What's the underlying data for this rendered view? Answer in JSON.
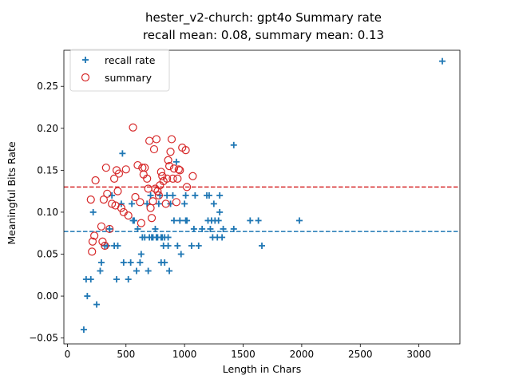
{
  "chart_data": {
    "type": "scatter",
    "title_line1": "hester_v2-church: gpt4o Summary rate",
    "title_line2": "recall mean: 0.08, summary mean: 0.13",
    "xlabel": "Length in Chars",
    "ylabel": "Meaningful Bits Rate",
    "xlim": [
      -30,
      3350
    ],
    "ylim": [
      -0.057,
      0.293
    ],
    "xticks": [
      0,
      500,
      1000,
      1500,
      2000,
      2500,
      3000
    ],
    "yticks": [
      -0.05,
      0.0,
      0.05,
      0.1,
      0.15,
      0.2,
      0.25
    ],
    "ytick_labels": [
      "−0.05",
      "0.00",
      "0.05",
      "0.10",
      "0.15",
      "0.20",
      "0.25"
    ],
    "grid": false,
    "legend_position": "top-left",
    "series": [
      {
        "name": "recall rate",
        "marker": "plus",
        "color": "#1f77b4",
        "mean": 0.077,
        "points": [
          [
            140,
            -0.04
          ],
          [
            170,
            0.0
          ],
          [
            200,
            0.02
          ],
          [
            160,
            0.02
          ],
          [
            250,
            -0.01
          ],
          [
            280,
            0.03
          ],
          [
            290,
            0.04
          ],
          [
            220,
            0.1
          ],
          [
            320,
            0.06
          ],
          [
            340,
            0.06
          ],
          [
            360,
            0.08
          ],
          [
            380,
            0.12
          ],
          [
            400,
            0.06
          ],
          [
            420,
            0.02
          ],
          [
            430,
            0.06
          ],
          [
            460,
            0.11
          ],
          [
            470,
            0.17
          ],
          [
            480,
            0.04
          ],
          [
            520,
            0.02
          ],
          [
            540,
            0.04
          ],
          [
            550,
            0.11
          ],
          [
            560,
            0.09
          ],
          [
            570,
            0.09
          ],
          [
            590,
            0.03
          ],
          [
            600,
            0.08
          ],
          [
            620,
            0.04
          ],
          [
            630,
            0.05
          ],
          [
            640,
            0.07
          ],
          [
            660,
            0.07
          ],
          [
            680,
            0.11
          ],
          [
            690,
            0.03
          ],
          [
            700,
            0.07
          ],
          [
            710,
            0.12
          ],
          [
            720,
            0.07
          ],
          [
            730,
            0.07
          ],
          [
            750,
            0.08
          ],
          [
            760,
            0.07
          ],
          [
            770,
            0.07
          ],
          [
            780,
            0.11
          ],
          [
            790,
            0.12
          ],
          [
            800,
            0.04
          ],
          [
            800,
            0.07
          ],
          [
            810,
            0.07
          ],
          [
            820,
            0.06
          ],
          [
            830,
            0.07
          ],
          [
            830,
            0.04
          ],
          [
            850,
            0.12
          ],
          [
            860,
            0.06
          ],
          [
            870,
            0.03
          ],
          [
            880,
            0.11
          ],
          [
            900,
            0.12
          ],
          [
            910,
            0.09
          ],
          [
            930,
            0.16
          ],
          [
            940,
            0.06
          ],
          [
            960,
            0.09
          ],
          [
            970,
            0.05
          ],
          [
            1000,
            0.11
          ],
          [
            1010,
            0.12
          ],
          [
            1020,
            0.09
          ],
          [
            1060,
            0.06
          ],
          [
            1080,
            0.08
          ],
          [
            1090,
            0.12
          ],
          [
            1120,
            0.06
          ],
          [
            1150,
            0.08
          ],
          [
            1190,
            0.12
          ],
          [
            1200,
            0.09
          ],
          [
            1220,
            0.08
          ],
          [
            1230,
            0.09
          ],
          [
            1240,
            0.07
          ],
          [
            1250,
            0.11
          ],
          [
            1260,
            0.09
          ],
          [
            1280,
            0.07
          ],
          [
            1290,
            0.09
          ],
          [
            1300,
            0.1
          ],
          [
            1300,
            0.12
          ],
          [
            1320,
            0.07
          ],
          [
            1330,
            0.08
          ],
          [
            1420,
            0.18
          ],
          [
            1420,
            0.08
          ],
          [
            1560,
            0.09
          ],
          [
            1630,
            0.09
          ],
          [
            1660,
            0.06
          ],
          [
            1980,
            0.09
          ],
          [
            3200,
            0.28
          ],
          [
            1210,
            0.12
          ],
          [
            1010,
            0.09
          ],
          [
            860,
            0.07
          ],
          [
            760,
            0.07
          ]
        ]
      },
      {
        "name": "summary",
        "marker": "circle",
        "color": "#d62728",
        "mean": 0.13,
        "points": [
          [
            200,
            0.115
          ],
          [
            210,
            0.053
          ],
          [
            215,
            0.065
          ],
          [
            230,
            0.072
          ],
          [
            240,
            0.138
          ],
          [
            290,
            0.083
          ],
          [
            300,
            0.065
          ],
          [
            310,
            0.115
          ],
          [
            320,
            0.06
          ],
          [
            330,
            0.153
          ],
          [
            340,
            0.122
          ],
          [
            360,
            0.08
          ],
          [
            380,
            0.11
          ],
          [
            400,
            0.14
          ],
          [
            410,
            0.108
          ],
          [
            420,
            0.15
          ],
          [
            430,
            0.125
          ],
          [
            440,
            0.146
          ],
          [
            460,
            0.105
          ],
          [
            480,
            0.1
          ],
          [
            500,
            0.151
          ],
          [
            520,
            0.096
          ],
          [
            560,
            0.201
          ],
          [
            580,
            0.118
          ],
          [
            600,
            0.156
          ],
          [
            620,
            0.112
          ],
          [
            630,
            0.087
          ],
          [
            640,
            0.153
          ],
          [
            650,
            0.145
          ],
          [
            660,
            0.153
          ],
          [
            680,
            0.14
          ],
          [
            690,
            0.128
          ],
          [
            700,
            0.185
          ],
          [
            710,
            0.105
          ],
          [
            720,
            0.093
          ],
          [
            730,
            0.113
          ],
          [
            740,
            0.175
          ],
          [
            750,
            0.128
          ],
          [
            760,
            0.187
          ],
          [
            770,
            0.125
          ],
          [
            780,
            0.12
          ],
          [
            790,
            0.132
          ],
          [
            800,
            0.148
          ],
          [
            810,
            0.143
          ],
          [
            820,
            0.137
          ],
          [
            840,
            0.11
          ],
          [
            850,
            0.14
          ],
          [
            860,
            0.162
          ],
          [
            870,
            0.155
          ],
          [
            880,
            0.172
          ],
          [
            890,
            0.187
          ],
          [
            900,
            0.14
          ],
          [
            910,
            0.152
          ],
          [
            930,
            0.112
          ],
          [
            940,
            0.14
          ],
          [
            950,
            0.151
          ],
          [
            960,
            0.15
          ],
          [
            980,
            0.177
          ],
          [
            1010,
            0.174
          ],
          [
            1020,
            0.13
          ],
          [
            1070,
            0.143
          ]
        ]
      }
    ]
  }
}
